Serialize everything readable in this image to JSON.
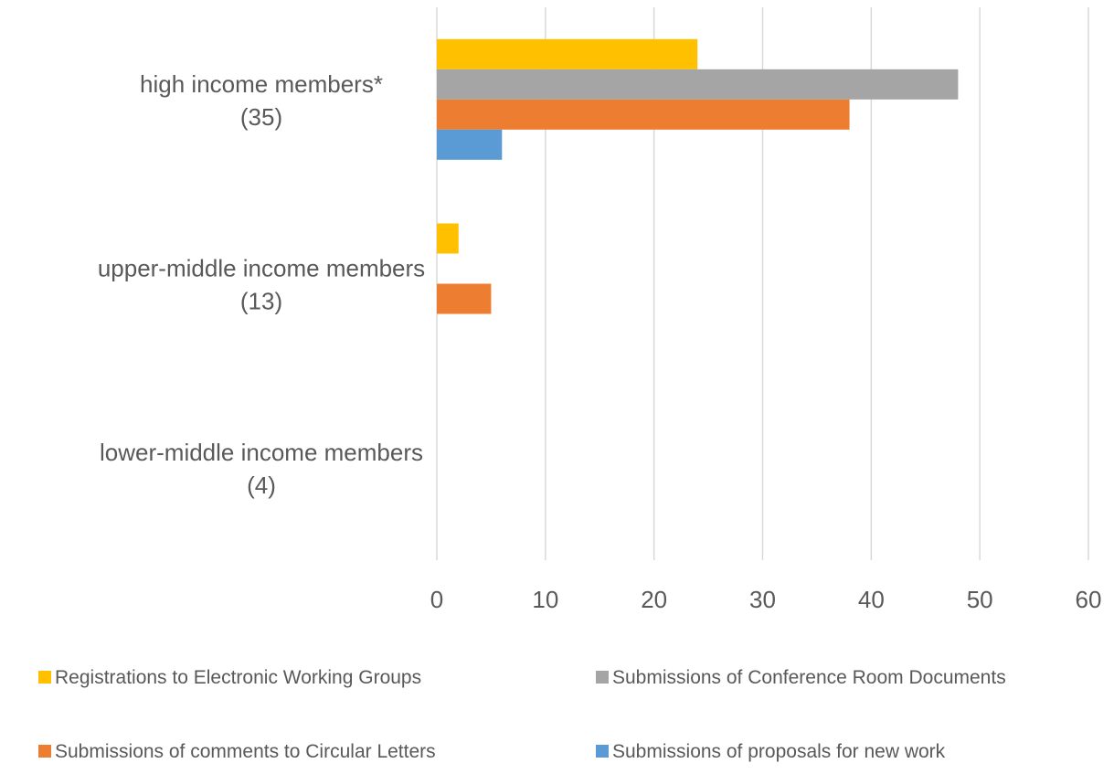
{
  "chart_data": {
    "type": "bar",
    "orientation": "horizontal",
    "categories": [
      {
        "line1": "high income members*",
        "line2": "(35)"
      },
      {
        "line1": "upper-middle income members",
        "line2": "(13)"
      },
      {
        "line1": "lower-middle income members",
        "line2": "(4)"
      }
    ],
    "series": [
      {
        "name": "Registrations to Electronic Working Groups",
        "color": "#FFC000",
        "values": [
          24,
          2,
          0
        ]
      },
      {
        "name": "Submissions of Conference Room Documents",
        "color": "#A5A5A5",
        "values": [
          48,
          0,
          0
        ]
      },
      {
        "name": "Submissions of comments to Circular Letters",
        "color": "#ED7D31",
        "values": [
          38,
          5,
          0
        ]
      },
      {
        "name": "Submissions of proposals for new work",
        "color": "#5B9BD5",
        "values": [
          6,
          0,
          0
        ]
      }
    ],
    "xlim": [
      0,
      60
    ],
    "xticks": [
      "0",
      "10",
      "20",
      "30",
      "40",
      "50",
      "60"
    ],
    "grid": "vertical",
    "legend_position": "bottom",
    "title": "",
    "xlabel": "",
    "ylabel": ""
  }
}
